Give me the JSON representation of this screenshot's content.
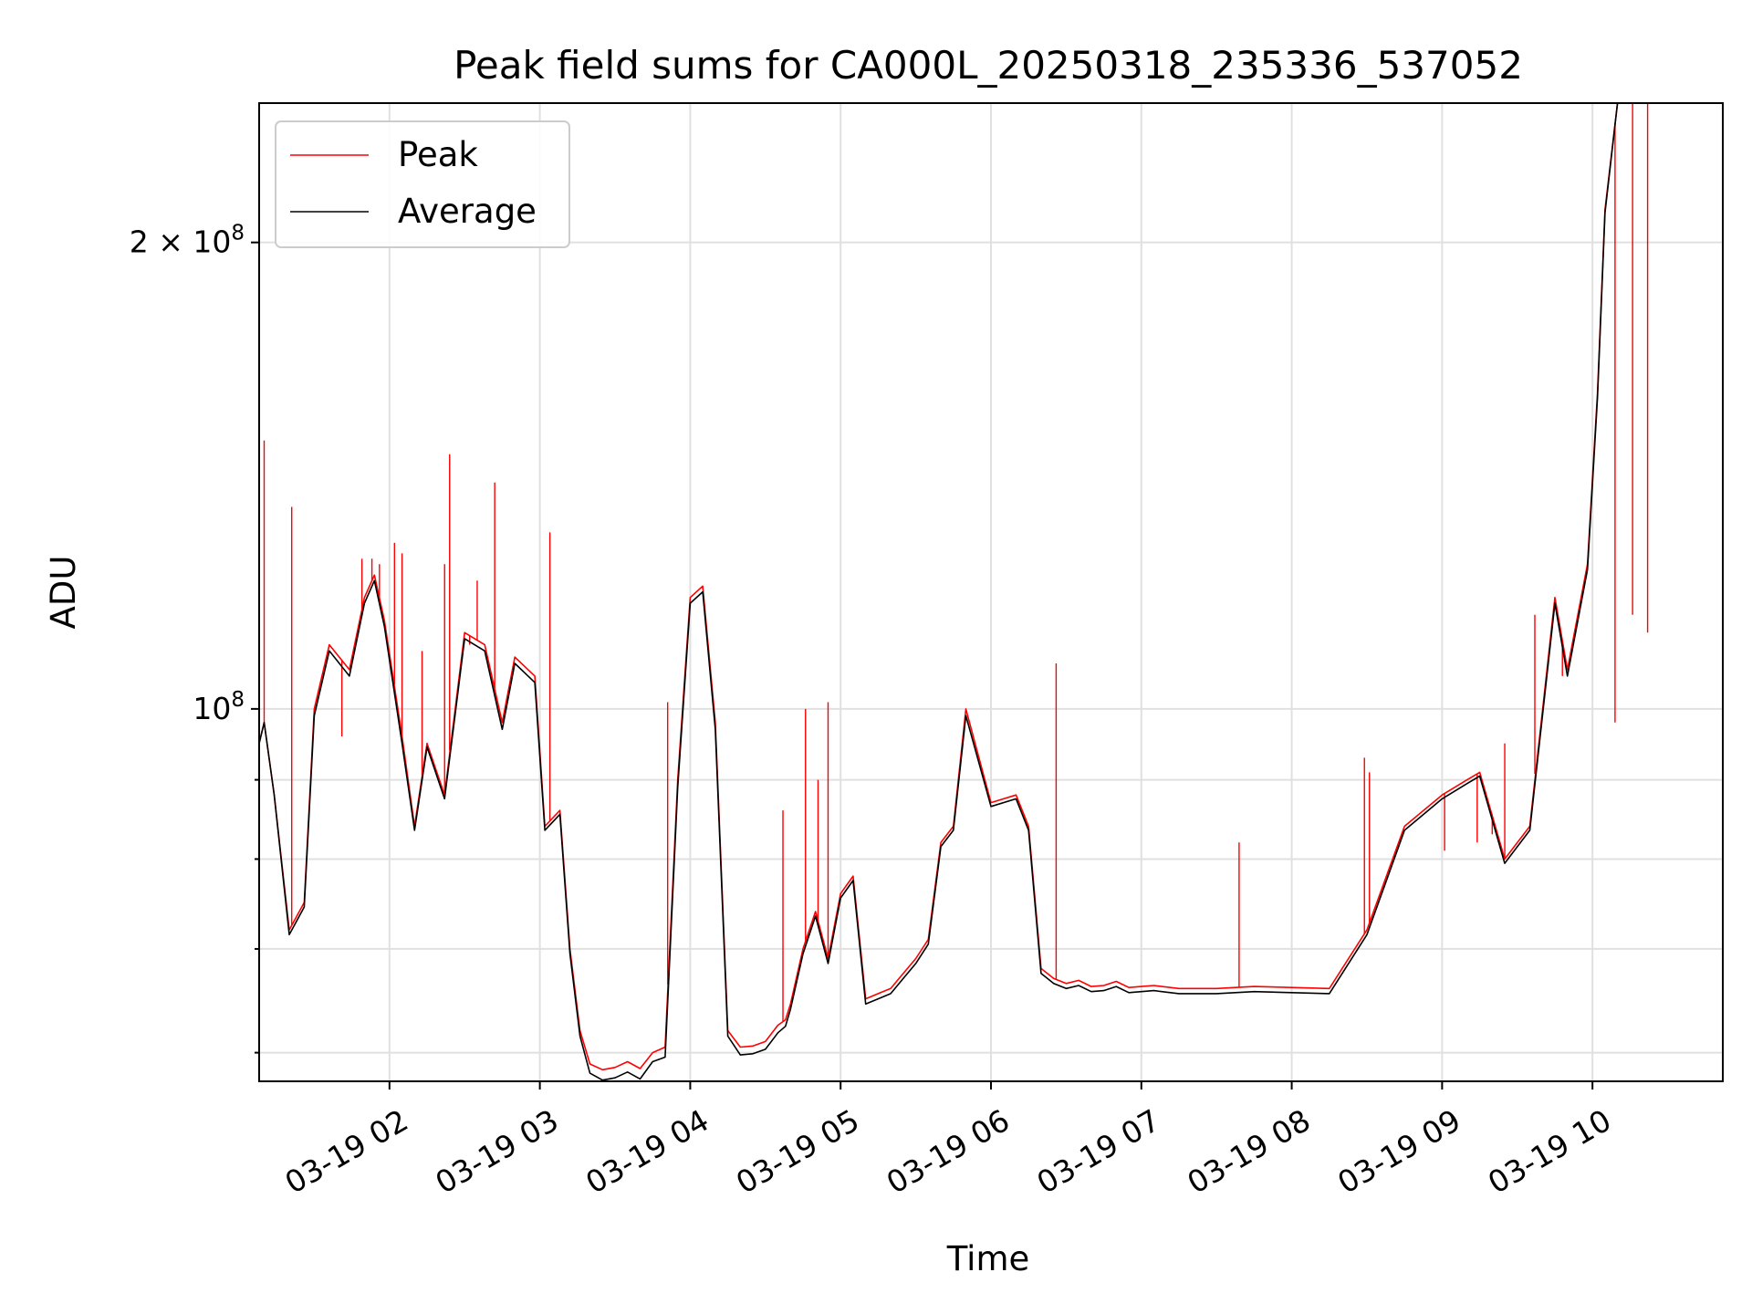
{
  "chart_data": {
    "type": "line",
    "title": "Peak field sums for CA000L_20250318_235336_537052",
    "xlabel": "Time",
    "ylabel": "ADU",
    "y_scale": "log",
    "x_range": [
      "03-19 01:08",
      "03-19 10:52"
    ],
    "ylim": [
      57500000,
      246000000
    ],
    "grid": true,
    "legend_position": "upper left",
    "x_ticks": [
      "03-19 02",
      "03-19 03",
      "03-19 04",
      "03-19 05",
      "03-19 06",
      "03-19 07",
      "03-19 08",
      "03-19 09",
      "03-19 10"
    ],
    "y_ticks": [
      {
        "label_base": "2",
        "label_times": "×",
        "label_pow": "10",
        "label_exp": "8",
        "value": 200000000
      },
      {
        "label_base": "10",
        "label_exp": "8",
        "value": 100000000
      }
    ],
    "y_minor_ticks": [
      60000000,
      70000000,
      80000000,
      90000000
    ],
    "series": [
      {
        "name": "Peak",
        "color": "#ff0000",
        "x": [
          "01:08",
          "01:10",
          "01:14",
          "01:20",
          "01:26",
          "01:30",
          "01:36",
          "01:44",
          "01:50",
          "01:54",
          "01:58",
          "02:05",
          "02:10",
          "02:15",
          "02:22",
          "02:30",
          "02:38",
          "02:45",
          "02:50",
          "02:58",
          "03:02",
          "03:08",
          "03:12",
          "03:16",
          "03:20",
          "03:25",
          "03:30",
          "03:35",
          "03:40",
          "03:45",
          "03:50",
          "03:55",
          "04:00",
          "04:05",
          "04:10",
          "04:15",
          "04:20",
          "04:25",
          "04:30",
          "04:35",
          "04:38",
          "04:40",
          "04:45",
          "04:50",
          "04:55",
          "05:00",
          "05:05",
          "05:10",
          "05:15",
          "05:20",
          "05:25",
          "05:30",
          "05:35",
          "05:40",
          "05:45",
          "05:50",
          "06:00",
          "06:10",
          "06:15",
          "06:20",
          "06:25",
          "06:30",
          "06:35",
          "06:40",
          "06:45",
          "06:50",
          "06:55",
          "07:00",
          "07:05",
          "07:15",
          "07:30",
          "07:45",
          "08:00",
          "08:15",
          "08:30",
          "08:45",
          "09:00",
          "09:10",
          "09:15",
          "09:25",
          "09:35",
          "09:45",
          "09:50",
          "09:58",
          "10:02",
          "10:05",
          "10:10",
          "10:14",
          "10:20",
          "10:28",
          "10:35",
          "10:42",
          "10:45",
          "10:50"
        ],
        "y": [
          95,
          98,
          88,
          72,
          75,
          100,
          110,
          106,
          118,
          122,
          114,
          96,
          84,
          95,
          88,
          112,
          110,
          98,
          108,
          105,
          84,
          86,
          70,
          62,
          59,
          58.5,
          58.7,
          59.2,
          58.6,
          60,
          60.5,
          90,
          118,
          120,
          98,
          62,
          60.5,
          60.6,
          61,
          62.5,
          63,
          64.5,
          70,
          74,
          69,
          76,
          78,
          65,
          65.5,
          66,
          67.5,
          69,
          71,
          82,
          84,
          100,
          87,
          88,
          84,
          68,
          67,
          66.5,
          66.8,
          66.2,
          66.3,
          66.7,
          66.1,
          66.2,
          66.3,
          66.0,
          66.0,
          66.2,
          66.1,
          66.0,
          72,
          84,
          88,
          90,
          91,
          80,
          84,
          118,
          106,
          124,
          160,
          210,
          246,
          246,
          246,
          246,
          246,
          246,
          246,
          246
        ],
        "spikes": [
          {
            "x": "01:10",
            "y": 149
          },
          {
            "x": "01:21",
            "y": 135
          },
          {
            "x": "01:41",
            "y": 96
          },
          {
            "x": "01:49",
            "y": 125
          },
          {
            "x": "01:53",
            "y": 125
          },
          {
            "x": "01:56",
            "y": 124
          },
          {
            "x": "02:02",
            "y": 128
          },
          {
            "x": "02:05",
            "y": 126
          },
          {
            "x": "02:13",
            "y": 109
          },
          {
            "x": "02:22",
            "y": 124
          },
          {
            "x": "02:24",
            "y": 146
          },
          {
            "x": "02:32",
            "y": 110
          },
          {
            "x": "02:35",
            "y": 121
          },
          {
            "x": "02:42",
            "y": 140
          },
          {
            "x": "03:04",
            "y": 130
          },
          {
            "x": "03:51",
            "y": 101
          },
          {
            "x": "04:37",
            "y": 86
          },
          {
            "x": "04:46",
            "y": 100
          },
          {
            "x": "04:51",
            "y": 90
          },
          {
            "x": "04:55",
            "y": 101
          },
          {
            "x": "06:26",
            "y": 107
          },
          {
            "x": "07:39",
            "y": 82
          },
          {
            "x": "08:29",
            "y": 93
          },
          {
            "x": "08:31",
            "y": 91
          },
          {
            "x": "09:01",
            "y": 81
          },
          {
            "x": "09:14",
            "y": 82
          },
          {
            "x": "09:20",
            "y": 83
          },
          {
            "x": "09:25",
            "y": 95
          },
          {
            "x": "09:37",
            "y": 115
          },
          {
            "x": "09:48",
            "y": 105
          },
          {
            "x": "10:09",
            "y": 98
          },
          {
            "x": "10:16",
            "y": 115
          },
          {
            "x": "10:22",
            "y": 112
          }
        ]
      },
      {
        "name": "Average",
        "color": "#000000",
        "x": [
          "01:08",
          "01:10",
          "01:14",
          "01:20",
          "01:26",
          "01:30",
          "01:36",
          "01:44",
          "01:50",
          "01:54",
          "01:58",
          "02:05",
          "02:10",
          "02:15",
          "02:22",
          "02:30",
          "02:38",
          "02:45",
          "02:50",
          "02:58",
          "03:02",
          "03:08",
          "03:12",
          "03:16",
          "03:20",
          "03:25",
          "03:30",
          "03:35",
          "03:40",
          "03:45",
          "03:50",
          "03:55",
          "04:00",
          "04:05",
          "04:10",
          "04:15",
          "04:20",
          "04:25",
          "04:30",
          "04:35",
          "04:38",
          "04:40",
          "04:45",
          "04:50",
          "04:55",
          "05:00",
          "05:05",
          "05:10",
          "05:15",
          "05:20",
          "05:25",
          "05:30",
          "05:35",
          "05:40",
          "05:45",
          "05:50",
          "06:00",
          "06:10",
          "06:15",
          "06:20",
          "06:25",
          "06:30",
          "06:35",
          "06:40",
          "06:45",
          "06:50",
          "06:55",
          "07:00",
          "07:05",
          "07:15",
          "07:30",
          "07:45",
          "08:00",
          "08:15",
          "08:30",
          "08:45",
          "09:00",
          "09:10",
          "09:15",
          "09:25",
          "09:35",
          "09:45",
          "09:50",
          "09:58",
          "10:02",
          "10:05",
          "10:10",
          "10:14",
          "10:20",
          "10:28",
          "10:35",
          "10:42",
          "10:45",
          "10:50"
        ],
        "y": [
          95,
          98,
          88,
          71.5,
          74.5,
          99,
          109,
          105,
          117,
          121,
          113,
          95,
          83.5,
          94.5,
          87.5,
          111,
          109,
          97,
          107,
          104,
          83.5,
          85.5,
          69.5,
          61.5,
          58.2,
          57.6,
          57.8,
          58.3,
          57.7,
          59.2,
          59.6,
          89,
          117,
          119,
          97,
          61.5,
          59.8,
          59.9,
          60.3,
          61.8,
          62.4,
          64,
          69.5,
          73.5,
          68.5,
          75.5,
          77.5,
          64.5,
          65,
          65.5,
          67,
          68.5,
          70.5,
          81.5,
          83.5,
          99,
          86.5,
          87.5,
          83.5,
          67.5,
          66.5,
          66,
          66.3,
          65.7,
          65.8,
          66.2,
          65.6,
          65.7,
          65.8,
          65.5,
          65.5,
          65.7,
          65.6,
          65.5,
          71.5,
          83.5,
          87.5,
          89.5,
          90.5,
          79.5,
          83.5,
          117,
          105,
          123,
          159,
          209,
          246,
          246,
          246,
          246,
          246,
          246,
          246,
          246
        ]
      }
    ]
  },
  "legend": {
    "peak_label": "Peak",
    "average_label": "Average"
  }
}
